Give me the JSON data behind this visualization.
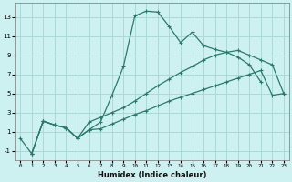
{
  "xlabel": "Humidex (Indice chaleur)",
  "background_color": "#cdf0f0",
  "grid_color": "#add8d8",
  "line_color": "#2a7a6a",
  "xlim": [
    -0.5,
    23.5
  ],
  "ylim": [
    -2.0,
    14.5
  ],
  "yticks": [
    -1,
    1,
    3,
    5,
    7,
    9,
    11,
    13
  ],
  "xticks": [
    0,
    1,
    2,
    3,
    4,
    5,
    6,
    7,
    8,
    9,
    10,
    11,
    12,
    13,
    14,
    15,
    16,
    17,
    18,
    19,
    20,
    21,
    22,
    23
  ],
  "line1_x": [
    0,
    1,
    2,
    3,
    4,
    5,
    6,
    7,
    8,
    9,
    10,
    11,
    12,
    13,
    14,
    15,
    16,
    17,
    18,
    19,
    20,
    21,
    22
  ],
  "line1_y": [
    0.3,
    -1.3,
    2.1,
    1.7,
    1.4,
    0.3,
    1.2,
    2.0,
    4.8,
    7.8,
    13.1,
    13.6,
    13.5,
    12.0,
    10.3,
    11.4,
    10.0,
    9.6,
    9.3,
    8.8,
    8.0,
    6.2,
    null
  ],
  "line2_x": [
    1,
    2,
    3,
    4,
    5,
    6,
    7,
    8,
    9,
    10,
    11,
    12,
    13,
    14,
    15,
    16,
    17,
    18,
    19,
    20,
    21,
    22,
    23
  ],
  "line2_y": [
    -1.3,
    2.1,
    1.7,
    1.4,
    0.3,
    2.0,
    2.5,
    3.0,
    3.5,
    4.2,
    5.0,
    5.8,
    6.5,
    7.2,
    7.8,
    8.5,
    9.0,
    9.3,
    9.5,
    9.0,
    8.5,
    8.0,
    5.0
  ],
  "line3_x": [
    1,
    2,
    3,
    4,
    5,
    6,
    7,
    8,
    9,
    10,
    11,
    12,
    13,
    14,
    15,
    16,
    17,
    18,
    19,
    20,
    21,
    22,
    23
  ],
  "line3_y": [
    -1.3,
    2.1,
    1.7,
    1.4,
    0.3,
    1.2,
    1.3,
    1.8,
    2.3,
    2.8,
    3.2,
    3.7,
    4.2,
    4.6,
    5.0,
    5.4,
    5.8,
    6.2,
    6.6,
    7.0,
    7.4,
    4.8,
    5.0
  ]
}
